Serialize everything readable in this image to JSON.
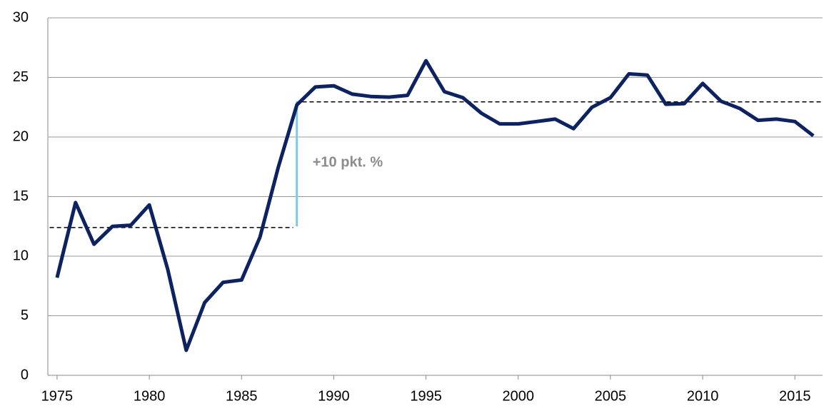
{
  "chart_data": {
    "type": "line",
    "x": [
      1975,
      1976,
      1977,
      1978,
      1979,
      1980,
      1981,
      1982,
      1983,
      1984,
      1985,
      1986,
      1987,
      1988,
      1989,
      1990,
      1991,
      1992,
      1993,
      1994,
      1995,
      1996,
      1997,
      1998,
      1999,
      2000,
      2001,
      2002,
      2003,
      2004,
      2005,
      2006,
      2007,
      2008,
      2009,
      2010,
      2011,
      2012,
      2013,
      2014,
      2015,
      2016
    ],
    "values": [
      8.2,
      14.5,
      11.0,
      12.5,
      12.6,
      14.3,
      8.9,
      2.1,
      6.1,
      7.8,
      8.0,
      11.6,
      17.5,
      22.7,
      24.2,
      24.3,
      23.6,
      23.4,
      23.35,
      23.5,
      26.4,
      23.8,
      23.3,
      22.0,
      21.1,
      21.1,
      21.3,
      21.5,
      20.7,
      22.5,
      23.3,
      25.3,
      25.2,
      22.75,
      22.8,
      24.5,
      23.0,
      22.4,
      21.4,
      21.5,
      21.3,
      20.1
    ],
    "color": "#0d2260",
    "xlim": [
      1974.5,
      2016.5
    ],
    "xticks": [
      1975,
      1980,
      1985,
      1990,
      1995,
      2000,
      2005,
      2010,
      2015
    ],
    "ylim": [
      0,
      30
    ],
    "yticks": [
      0,
      5,
      10,
      15,
      20,
      25,
      30
    ],
    "grid": true,
    "reference_lines": [
      {
        "x": [
          1974.6,
          1987.8
        ],
        "y": 12.4
      },
      {
        "x": [
          1988.3,
          2016.5
        ],
        "y": 22.95
      }
    ],
    "annotation": {
      "text": "+10 pkt. %",
      "x": 1988,
      "y_from": 12.5,
      "y_to": 23.0,
      "color": "#7ec8e3"
    }
  }
}
